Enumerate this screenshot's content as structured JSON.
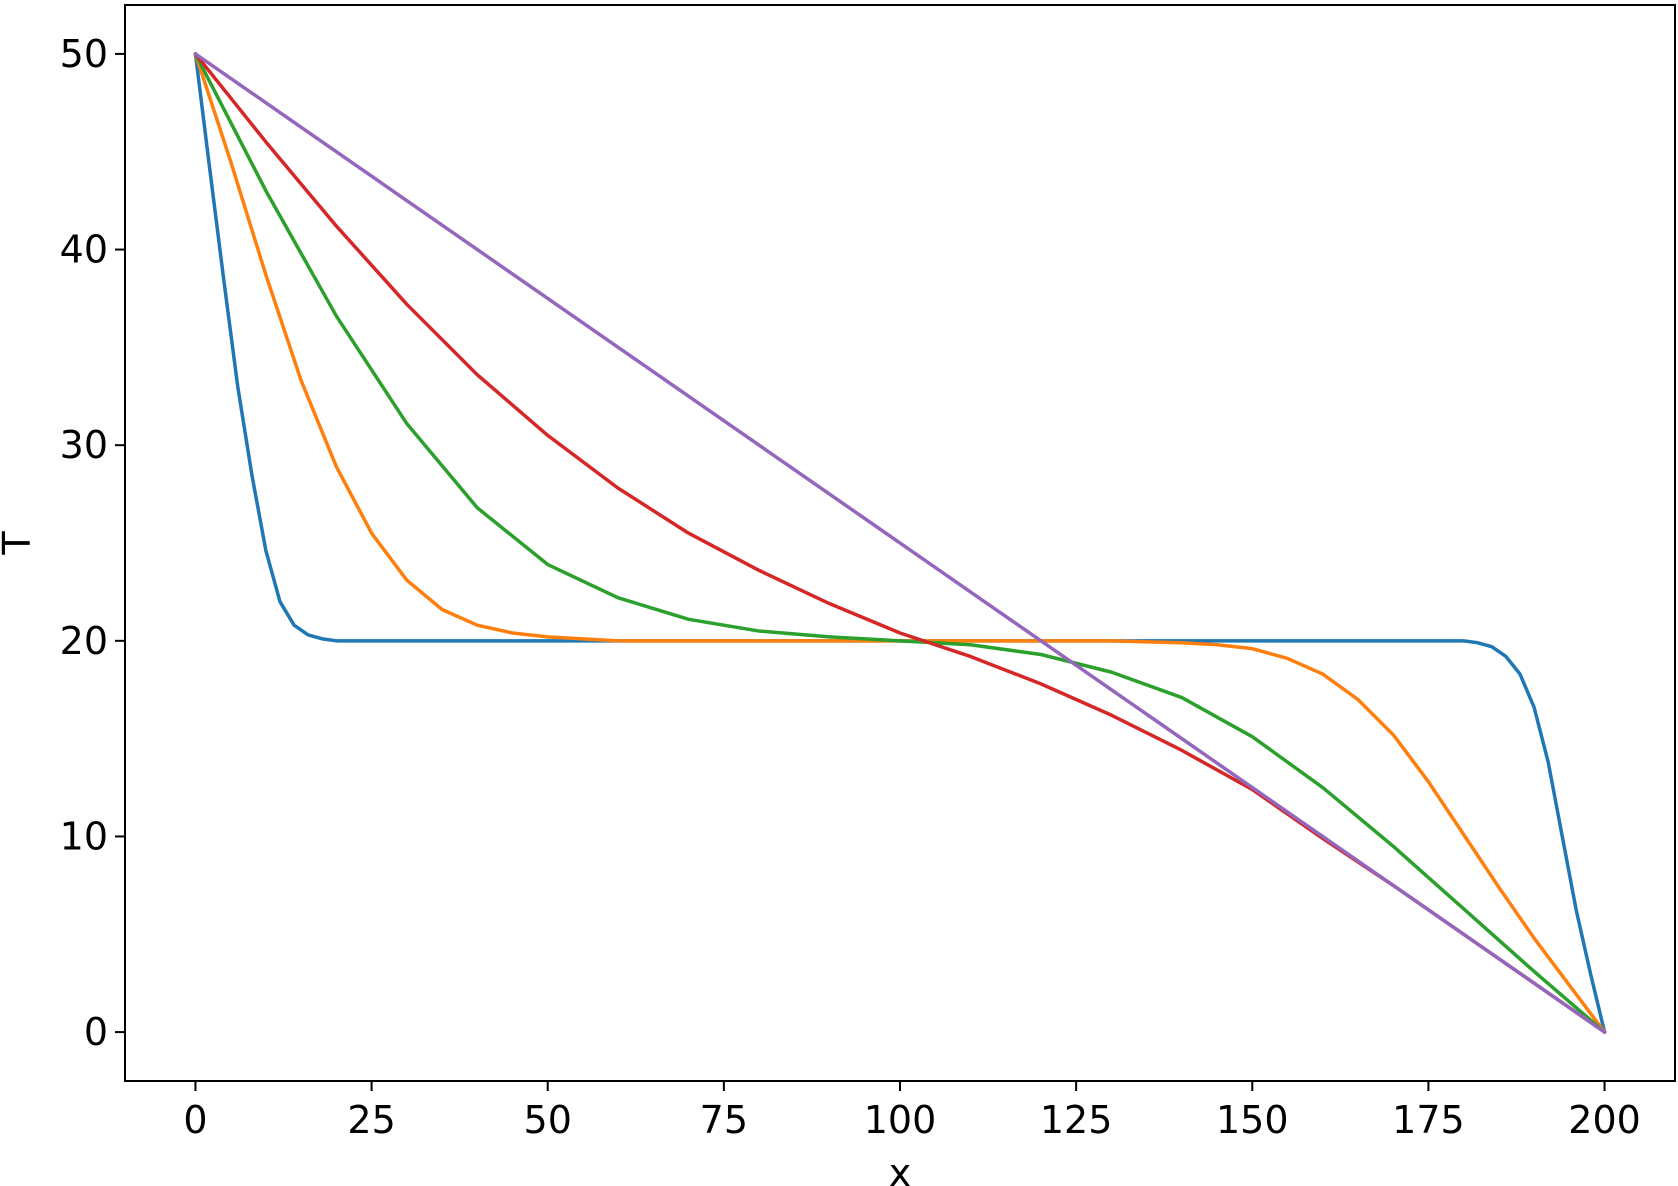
{
  "chart_data": {
    "type": "line",
    "title": "",
    "xlabel": "x",
    "ylabel": "T",
    "xlim": [
      -10,
      210
    ],
    "ylim": [
      -2.5,
      52.5
    ],
    "xticks": [
      0,
      25,
      50,
      75,
      100,
      125,
      150,
      175,
      200
    ],
    "yticks": [
      0,
      10,
      20,
      30,
      40,
      50
    ],
    "grid": false,
    "legend": "none",
    "series": [
      {
        "color": "#1f77b4",
        "x": [
          0,
          2,
          4,
          6,
          8,
          10,
          12,
          14,
          16,
          18,
          20,
          22,
          25,
          30,
          40,
          60,
          80,
          100,
          120,
          140,
          160,
          175,
          178,
          180,
          182,
          184,
          186,
          188,
          190,
          192,
          194,
          196,
          198,
          200
        ],
        "y": [
          50,
          44.2,
          38.5,
          33.0,
          28.5,
          24.6,
          22.0,
          20.8,
          20.3,
          20.1,
          20.0,
          20.0,
          20.0,
          20.0,
          20.0,
          20.0,
          20.0,
          20.0,
          20.0,
          20.0,
          20.0,
          20.0,
          20.0,
          20.0,
          19.9,
          19.7,
          19.2,
          18.3,
          16.6,
          13.8,
          10.0,
          6.2,
          3.0,
          0
        ]
      },
      {
        "color": "#ff7f0e",
        "x": [
          0,
          5,
          10,
          15,
          20,
          25,
          30,
          35,
          40,
          45,
          50,
          55,
          60,
          70,
          80,
          100,
          120,
          130,
          140,
          145,
          150,
          155,
          160,
          165,
          170,
          175,
          180,
          185,
          190,
          195,
          200
        ],
        "y": [
          50,
          44.5,
          38.7,
          33.3,
          28.9,
          25.5,
          23.1,
          21.6,
          20.8,
          20.4,
          20.2,
          20.1,
          20.0,
          20.0,
          20.0,
          20.0,
          20.0,
          20.0,
          19.9,
          19.8,
          19.6,
          19.1,
          18.3,
          17.0,
          15.2,
          12.8,
          10.1,
          7.4,
          4.8,
          2.4,
          0
        ]
      },
      {
        "color": "#2ca02c",
        "x": [
          0,
          10,
          20,
          30,
          40,
          50,
          60,
          70,
          80,
          90,
          100,
          105,
          110,
          120,
          130,
          140,
          150,
          160,
          170,
          180,
          190,
          200
        ],
        "y": [
          50,
          43.0,
          36.6,
          31.1,
          26.8,
          23.9,
          22.2,
          21.1,
          20.5,
          20.2,
          20.0,
          19.9,
          19.8,
          19.3,
          18.4,
          17.1,
          15.1,
          12.5,
          9.5,
          6.3,
          3.1,
          0
        ]
      },
      {
        "color": "#d62728",
        "x": [
          0,
          10,
          20,
          30,
          40,
          50,
          60,
          70,
          80,
          90,
          100,
          105,
          110,
          120,
          130,
          140,
          150,
          160,
          170,
          180,
          190,
          200
        ],
        "y": [
          50,
          45.5,
          41.2,
          37.2,
          33.6,
          30.5,
          27.8,
          25.5,
          23.6,
          21.9,
          20.4,
          19.8,
          19.2,
          17.8,
          16.2,
          14.4,
          12.4,
          9.9,
          7.5,
          5.0,
          2.5,
          0
        ]
      },
      {
        "color": "#9467bd",
        "x": [
          0,
          200
        ],
        "y": [
          50,
          0
        ]
      }
    ]
  }
}
